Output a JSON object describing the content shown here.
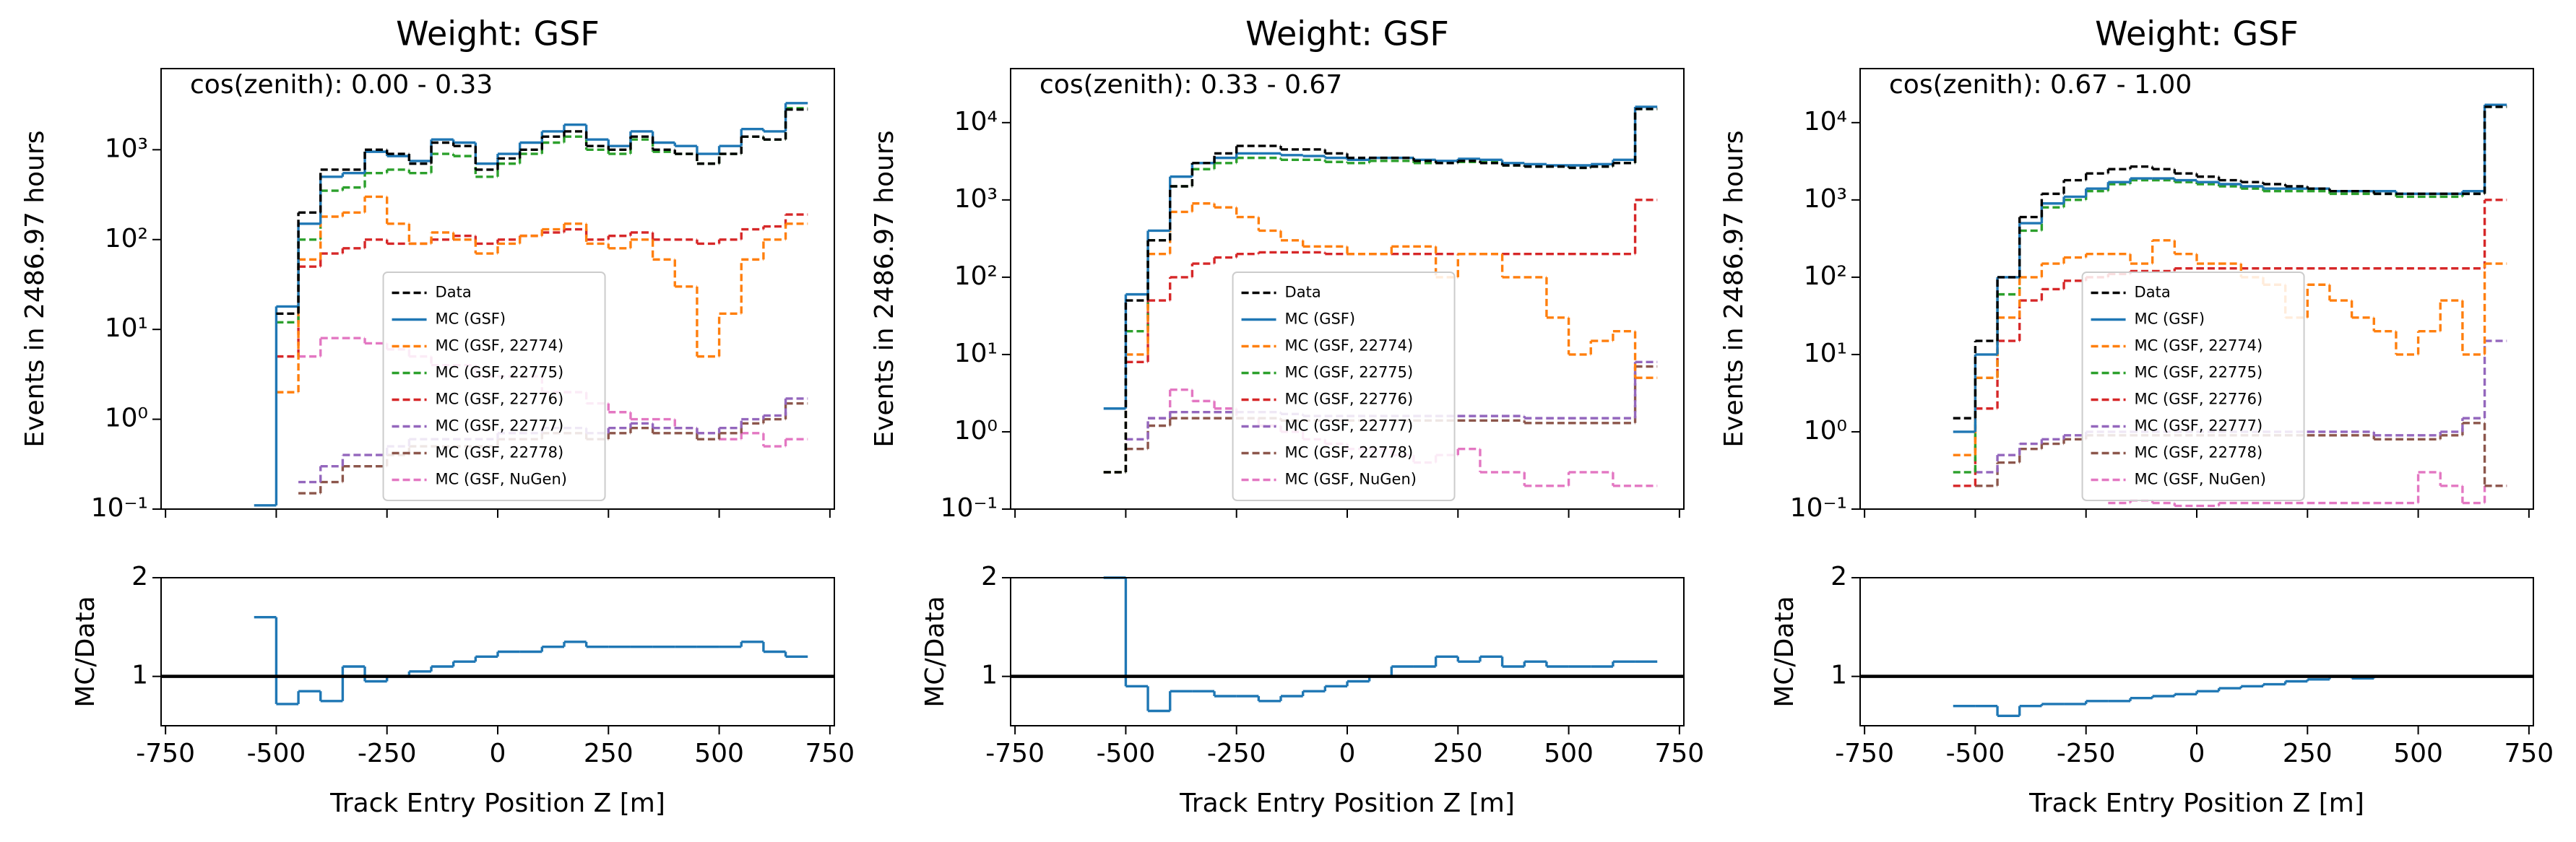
{
  "chart_data": [
    {
      "type": "histogram",
      "title": "Weight: GSF",
      "annotation": "cos(zenith): 0.00 - 0.33",
      "ylabel": "Events in 2486.97 hours",
      "xlabel": "Track Entry Position Z [m]",
      "log_y": true,
      "legend": "lower center",
      "bins": [
        -550,
        -500,
        -450,
        -400,
        -350,
        -300,
        -250,
        -200,
        -150,
        -100,
        -50,
        0,
        50,
        100,
        150,
        200,
        250,
        300,
        350,
        400,
        450,
        500,
        550,
        600,
        650,
        700
      ],
      "xlim": [
        -760,
        760
      ],
      "xticks": [
        -750,
        -500,
        -250,
        0,
        250,
        500,
        750
      ],
      "ylim": [
        0.1,
        8000
      ],
      "yticks": [
        {
          "value": 0.1,
          "label": "10⁻¹"
        },
        {
          "value": 1,
          "label": "10⁰"
        },
        {
          "value": 10,
          "label": "10¹"
        },
        {
          "value": 100,
          "label": "10²"
        },
        {
          "value": 1000,
          "label": "10³"
        }
      ],
      "series": [
        {
          "name": "Data",
          "color": "#000000",
          "linestyle": "dashed",
          "values": [
            null,
            15,
            200,
            600,
            600,
            1000,
            900,
            700,
            1200,
            1100,
            600,
            800,
            1000,
            1400,
            1600,
            1100,
            1000,
            1400,
            1000,
            900,
            700,
            900,
            1400,
            1300,
            2800
          ]
        },
        {
          "name": "MC (GSF)",
          "color": "#1f77b4",
          "linestyle": "solid",
          "values": [
            0.11,
            18,
            150,
            500,
            550,
            950,
            850,
            750,
            1300,
            1200,
            700,
            900,
            1200,
            1600,
            1900,
            1300,
            1100,
            1600,
            1200,
            1100,
            900,
            1100,
            1700,
            1600,
            3300
          ]
        },
        {
          "name": "MC (GSF, 22774)",
          "color": "#ff7f0e",
          "linestyle": "dashed",
          "values": [
            null,
            2,
            60,
            180,
            200,
            300,
            150,
            90,
            120,
            100,
            70,
            90,
            110,
            130,
            150,
            90,
            80,
            100,
            60,
            30,
            5,
            15,
            60,
            100,
            150
          ]
        },
        {
          "name": "MC (GSF, 22775)",
          "color": "#2ca02c",
          "linestyle": "dashed",
          "values": [
            null,
            12,
            100,
            350,
            380,
            550,
            600,
            550,
            900,
            850,
            500,
            700,
            900,
            1200,
            1400,
            1000,
            900,
            1300,
            950,
            900,
            700,
            900,
            1400,
            1300,
            2900
          ]
        },
        {
          "name": "MC (GSF, 22776)",
          "color": "#d62728",
          "linestyle": "dashed",
          "values": [
            null,
            5,
            50,
            70,
            80,
            100,
            90,
            90,
            100,
            110,
            90,
            100,
            110,
            120,
            130,
            100,
            110,
            120,
            100,
            100,
            90,
            100,
            130,
            140,
            190
          ]
        },
        {
          "name": "MC (GSF, 22777)",
          "color": "#9467bd",
          "linestyle": "dashed",
          "values": [
            null,
            null,
            0.2,
            0.3,
            0.4,
            0.4,
            0.5,
            0.6,
            0.6,
            0.6,
            0.6,
            0.7,
            0.7,
            0.8,
            0.8,
            0.7,
            0.8,
            0.9,
            0.8,
            0.8,
            0.7,
            0.8,
            1.0,
            1.1,
            1.7
          ]
        },
        {
          "name": "MC (GSF, 22778)",
          "color": "#8c564b",
          "linestyle": "dashed",
          "values": [
            null,
            null,
            0.15,
            0.2,
            0.3,
            0.3,
            0.4,
            0.5,
            0.5,
            0.5,
            0.5,
            0.6,
            0.6,
            0.7,
            0.7,
            0.6,
            0.7,
            0.8,
            0.7,
            0.7,
            0.6,
            0.7,
            0.9,
            1.0,
            1.5
          ]
        },
        {
          "name": "MC (GSF, NuGen)",
          "color": "#e377c2",
          "linestyle": "dashed",
          "values": [
            null,
            null,
            5,
            8,
            8,
            7,
            6,
            5,
            4,
            4,
            3,
            3,
            3,
            2,
            2,
            1.5,
            1.2,
            1.0,
            1.0,
            0.8,
            0.7,
            0.6,
            0.7,
            0.5,
            0.6
          ]
        }
      ],
      "ratio": {
        "ylabel": "MC/Data",
        "color": "#1f77b4",
        "ylim": [
          0.5,
          2
        ],
        "yticks": [
          1,
          2
        ],
        "reference_line": 1,
        "values": [
          1.6,
          0.72,
          0.85,
          0.75,
          1.1,
          0.95,
          1.0,
          1.05,
          1.1,
          1.15,
          1.2,
          1.25,
          1.25,
          1.3,
          1.35,
          1.3,
          1.3,
          1.3,
          1.3,
          1.3,
          1.3,
          1.3,
          1.35,
          1.25,
          1.2
        ]
      }
    },
    {
      "type": "histogram",
      "title": "Weight: GSF",
      "annotation": "cos(zenith): 0.33 - 0.67",
      "ylabel": "Events in 2486.97 hours",
      "xlabel": "Track Entry Position Z [m]",
      "log_y": true,
      "legend": "lower center",
      "bins": [
        -550,
        -500,
        -450,
        -400,
        -350,
        -300,
        -250,
        -200,
        -150,
        -100,
        -50,
        0,
        50,
        100,
        150,
        200,
        250,
        300,
        350,
        400,
        450,
        500,
        550,
        600,
        650,
        700
      ],
      "xlim": [
        -760,
        760
      ],
      "xticks": [
        -750,
        -500,
        -250,
        0,
        250,
        500,
        750
      ],
      "ylim": [
        0.1,
        50000
      ],
      "yticks": [
        {
          "value": 0.1,
          "label": "10⁻¹"
        },
        {
          "value": 1,
          "label": "10⁰"
        },
        {
          "value": 10,
          "label": "10¹"
        },
        {
          "value": 100,
          "label": "10²"
        },
        {
          "value": 1000,
          "label": "10³"
        },
        {
          "value": 10000,
          "label": "10⁴"
        }
      ],
      "series": [
        {
          "name": "Data",
          "color": "#000000",
          "linestyle": "dashed",
          "values": [
            0.3,
            50,
            300,
            1500,
            3000,
            4000,
            5000,
            5000,
            4500,
            4500,
            4000,
            3500,
            3500,
            3500,
            3200,
            3000,
            3200,
            3000,
            2800,
            2700,
            2700,
            2600,
            2700,
            3000,
            15000
          ]
        },
        {
          "name": "MC (GSF)",
          "color": "#1f77b4",
          "linestyle": "solid",
          "values": [
            2,
            60,
            400,
            2000,
            3000,
            3500,
            4000,
            4000,
            3800,
            3700,
            3500,
            3300,
            3500,
            3500,
            3300,
            3200,
            3400,
            3300,
            3000,
            2900,
            2800,
            2800,
            2900,
            3300,
            16000
          ]
        },
        {
          "name": "MC (GSF, 22774)",
          "color": "#ff7f0e",
          "linestyle": "dashed",
          "values": [
            null,
            10,
            200,
            700,
            900,
            800,
            600,
            400,
            300,
            250,
            250,
            200,
            200,
            250,
            250,
            100,
            200,
            200,
            100,
            100,
            30,
            10,
            15,
            20,
            5
          ]
        },
        {
          "name": "MC (GSF, 22775)",
          "color": "#2ca02c",
          "linestyle": "dashed",
          "values": [
            0.3,
            20,
            300,
            1500,
            2500,
            3000,
            3500,
            3500,
            3300,
            3300,
            3100,
            3000,
            3200,
            3200,
            3000,
            3000,
            3100,
            3100,
            2800,
            2700,
            2700,
            2600,
            2700,
            3000,
            15000
          ]
        },
        {
          "name": "MC (GSF, 22776)",
          "color": "#d62728",
          "linestyle": "dashed",
          "values": [
            0.3,
            8,
            50,
            100,
            150,
            180,
            200,
            210,
            210,
            210,
            200,
            200,
            200,
            200,
            200,
            200,
            200,
            200,
            200,
            200,
            200,
            200,
            200,
            200,
            1000
          ]
        },
        {
          "name": "MC (GSF, 22777)",
          "color": "#9467bd",
          "linestyle": "dashed",
          "values": [
            null,
            0.8,
            1.5,
            1.8,
            1.8,
            1.8,
            1.8,
            1.8,
            1.7,
            1.6,
            1.6,
            1.6,
            1.6,
            1.6,
            1.6,
            1.6,
            1.6,
            1.6,
            1.6,
            1.5,
            1.5,
            1.5,
            1.5,
            1.5,
            8
          ]
        },
        {
          "name": "MC (GSF, 22778)",
          "color": "#8c564b",
          "linestyle": "dashed",
          "values": [
            null,
            0.6,
            1.2,
            1.5,
            1.5,
            1.5,
            1.5,
            1.5,
            1.4,
            1.4,
            1.4,
            1.4,
            1.4,
            1.4,
            1.4,
            1.4,
            1.4,
            1.4,
            1.4,
            1.3,
            1.3,
            1.3,
            1.3,
            1.3,
            7
          ]
        },
        {
          "name": "MC (GSF, NuGen)",
          "color": "#e377c2",
          "linestyle": "dashed",
          "values": [
            null,
            null,
            1.5,
            3.5,
            2.5,
            2,
            1.5,
            1.2,
            1,
            0.8,
            0.7,
            0.6,
            0.6,
            0.5,
            0.4,
            0.5,
            0.6,
            0.3,
            0.3,
            0.2,
            0.2,
            0.3,
            0.3,
            0.2,
            0.2
          ]
        }
      ],
      "ratio": {
        "ylabel": "MC/Data",
        "color": "#1f77b4",
        "ylim": [
          0.5,
          2
        ],
        "yticks": [
          1,
          2
        ],
        "reference_line": 1,
        "values": [
          2.0,
          0.9,
          0.65,
          0.85,
          0.85,
          0.8,
          0.8,
          0.75,
          0.8,
          0.85,
          0.9,
          0.95,
          1.0,
          1.1,
          1.1,
          1.2,
          1.15,
          1.2,
          1.1,
          1.15,
          1.1,
          1.1,
          1.1,
          1.15,
          1.15
        ]
      }
    },
    {
      "type": "histogram",
      "title": "Weight: GSF",
      "annotation": "cos(zenith): 0.67 - 1.00",
      "ylabel": "Events in 2486.97 hours",
      "xlabel": "Track Entry Position Z [m]",
      "log_y": true,
      "legend": "lower center",
      "bins": [
        -550,
        -500,
        -450,
        -400,
        -350,
        -300,
        -250,
        -200,
        -150,
        -100,
        -50,
        0,
        50,
        100,
        150,
        200,
        250,
        300,
        350,
        400,
        450,
        500,
        550,
        600,
        650,
        700
      ],
      "xlim": [
        -760,
        760
      ],
      "xticks": [
        -750,
        -500,
        -250,
        0,
        250,
        500,
        750
      ],
      "ylim": [
        0.1,
        50000
      ],
      "yticks": [
        {
          "value": 0.1,
          "label": "10⁻¹"
        },
        {
          "value": 1,
          "label": "10⁰"
        },
        {
          "value": 10,
          "label": "10¹"
        },
        {
          "value": 100,
          "label": "10²"
        },
        {
          "value": 1000,
          "label": "10³"
        },
        {
          "value": 10000,
          "label": "10⁴"
        }
      ],
      "series": [
        {
          "name": "Data",
          "color": "#000000",
          "linestyle": "dashed",
          "values": [
            1.5,
            15,
            100,
            600,
            1200,
            1800,
            2200,
            2500,
            2700,
            2500,
            2200,
            2000,
            1800,
            1700,
            1600,
            1500,
            1400,
            1300,
            1300,
            1200,
            1200,
            1200,
            1200,
            1200,
            16000
          ]
        },
        {
          "name": "MC (GSF)",
          "color": "#1f77b4",
          "linestyle": "solid",
          "values": [
            1,
            10,
            100,
            500,
            900,
            1100,
            1400,
            1700,
            1900,
            1900,
            1800,
            1700,
            1600,
            1500,
            1400,
            1400,
            1400,
            1300,
            1300,
            1300,
            1200,
            1200,
            1200,
            1300,
            17000
          ]
        },
        {
          "name": "MC (GSF, 22774)",
          "color": "#ff7f0e",
          "linestyle": "dashed",
          "values": [
            0.5,
            5,
            30,
            100,
            150,
            180,
            200,
            200,
            150,
            300,
            200,
            150,
            150,
            100,
            80,
            30,
            80,
            50,
            30,
            20,
            10,
            20,
            50,
            10,
            150
          ]
        },
        {
          "name": "MC (GSF, 22775)",
          "color": "#2ca02c",
          "linestyle": "dashed",
          "values": [
            0.3,
            5,
            60,
            400,
            800,
            1000,
            1300,
            1600,
            1800,
            1800,
            1700,
            1600,
            1500,
            1400,
            1300,
            1300,
            1300,
            1200,
            1200,
            1200,
            1100,
            1100,
            1100,
            1200,
            16000
          ]
        },
        {
          "name": "MC (GSF, 22776)",
          "color": "#d62728",
          "linestyle": "dashed",
          "values": [
            0.2,
            2,
            15,
            50,
            70,
            90,
            100,
            110,
            120,
            120,
            130,
            130,
            130,
            130,
            130,
            130,
            130,
            130,
            130,
            130,
            130,
            130,
            130,
            130,
            1000
          ]
        },
        {
          "name": "MC (GSF, 22777)",
          "color": "#9467bd",
          "linestyle": "dashed",
          "values": [
            null,
            0.3,
            0.5,
            0.7,
            0.8,
            0.9,
            1,
            1,
            1,
            1,
            1,
            1,
            1,
            1,
            1,
            1,
            1,
            1,
            1,
            0.9,
            0.9,
            0.9,
            1.0,
            1.5,
            15
          ]
        },
        {
          "name": "MC (GSF, 22778)",
          "color": "#8c564b",
          "linestyle": "dashed",
          "values": [
            null,
            0.2,
            0.4,
            0.6,
            0.7,
            0.8,
            0.9,
            0.9,
            0.9,
            0.9,
            0.9,
            0.9,
            0.9,
            0.9,
            0.9,
            0.9,
            0.9,
            0.9,
            0.9,
            0.8,
            0.8,
            0.8,
            0.9,
            1.3,
            0.2
          ]
        },
        {
          "name": "MC (GSF, NuGen)",
          "color": "#e377c2",
          "linestyle": "dashed",
          "values": [
            null,
            null,
            null,
            null,
            null,
            null,
            null,
            0.12,
            0.13,
            0.12,
            0.11,
            0.11,
            0.12,
            0.12,
            0.12,
            0.12,
            0.12,
            0.12,
            0.12,
            0.12,
            0.12,
            0.3,
            0.2,
            0.12,
            0.2
          ]
        }
      ],
      "ratio": {
        "ylabel": "MC/Data",
        "color": "#1f77b4",
        "ylim": [
          0.5,
          2
        ],
        "yticks": [
          1,
          2
        ],
        "reference_line": 1,
        "values": [
          0.7,
          0.7,
          0.6,
          0.7,
          0.72,
          0.72,
          0.75,
          0.75,
          0.78,
          0.8,
          0.82,
          0.85,
          0.88,
          0.9,
          0.92,
          0.95,
          0.97,
          1.0,
          0.98,
          1.0,
          1,
          1,
          1,
          1,
          1
        ]
      }
    }
  ]
}
